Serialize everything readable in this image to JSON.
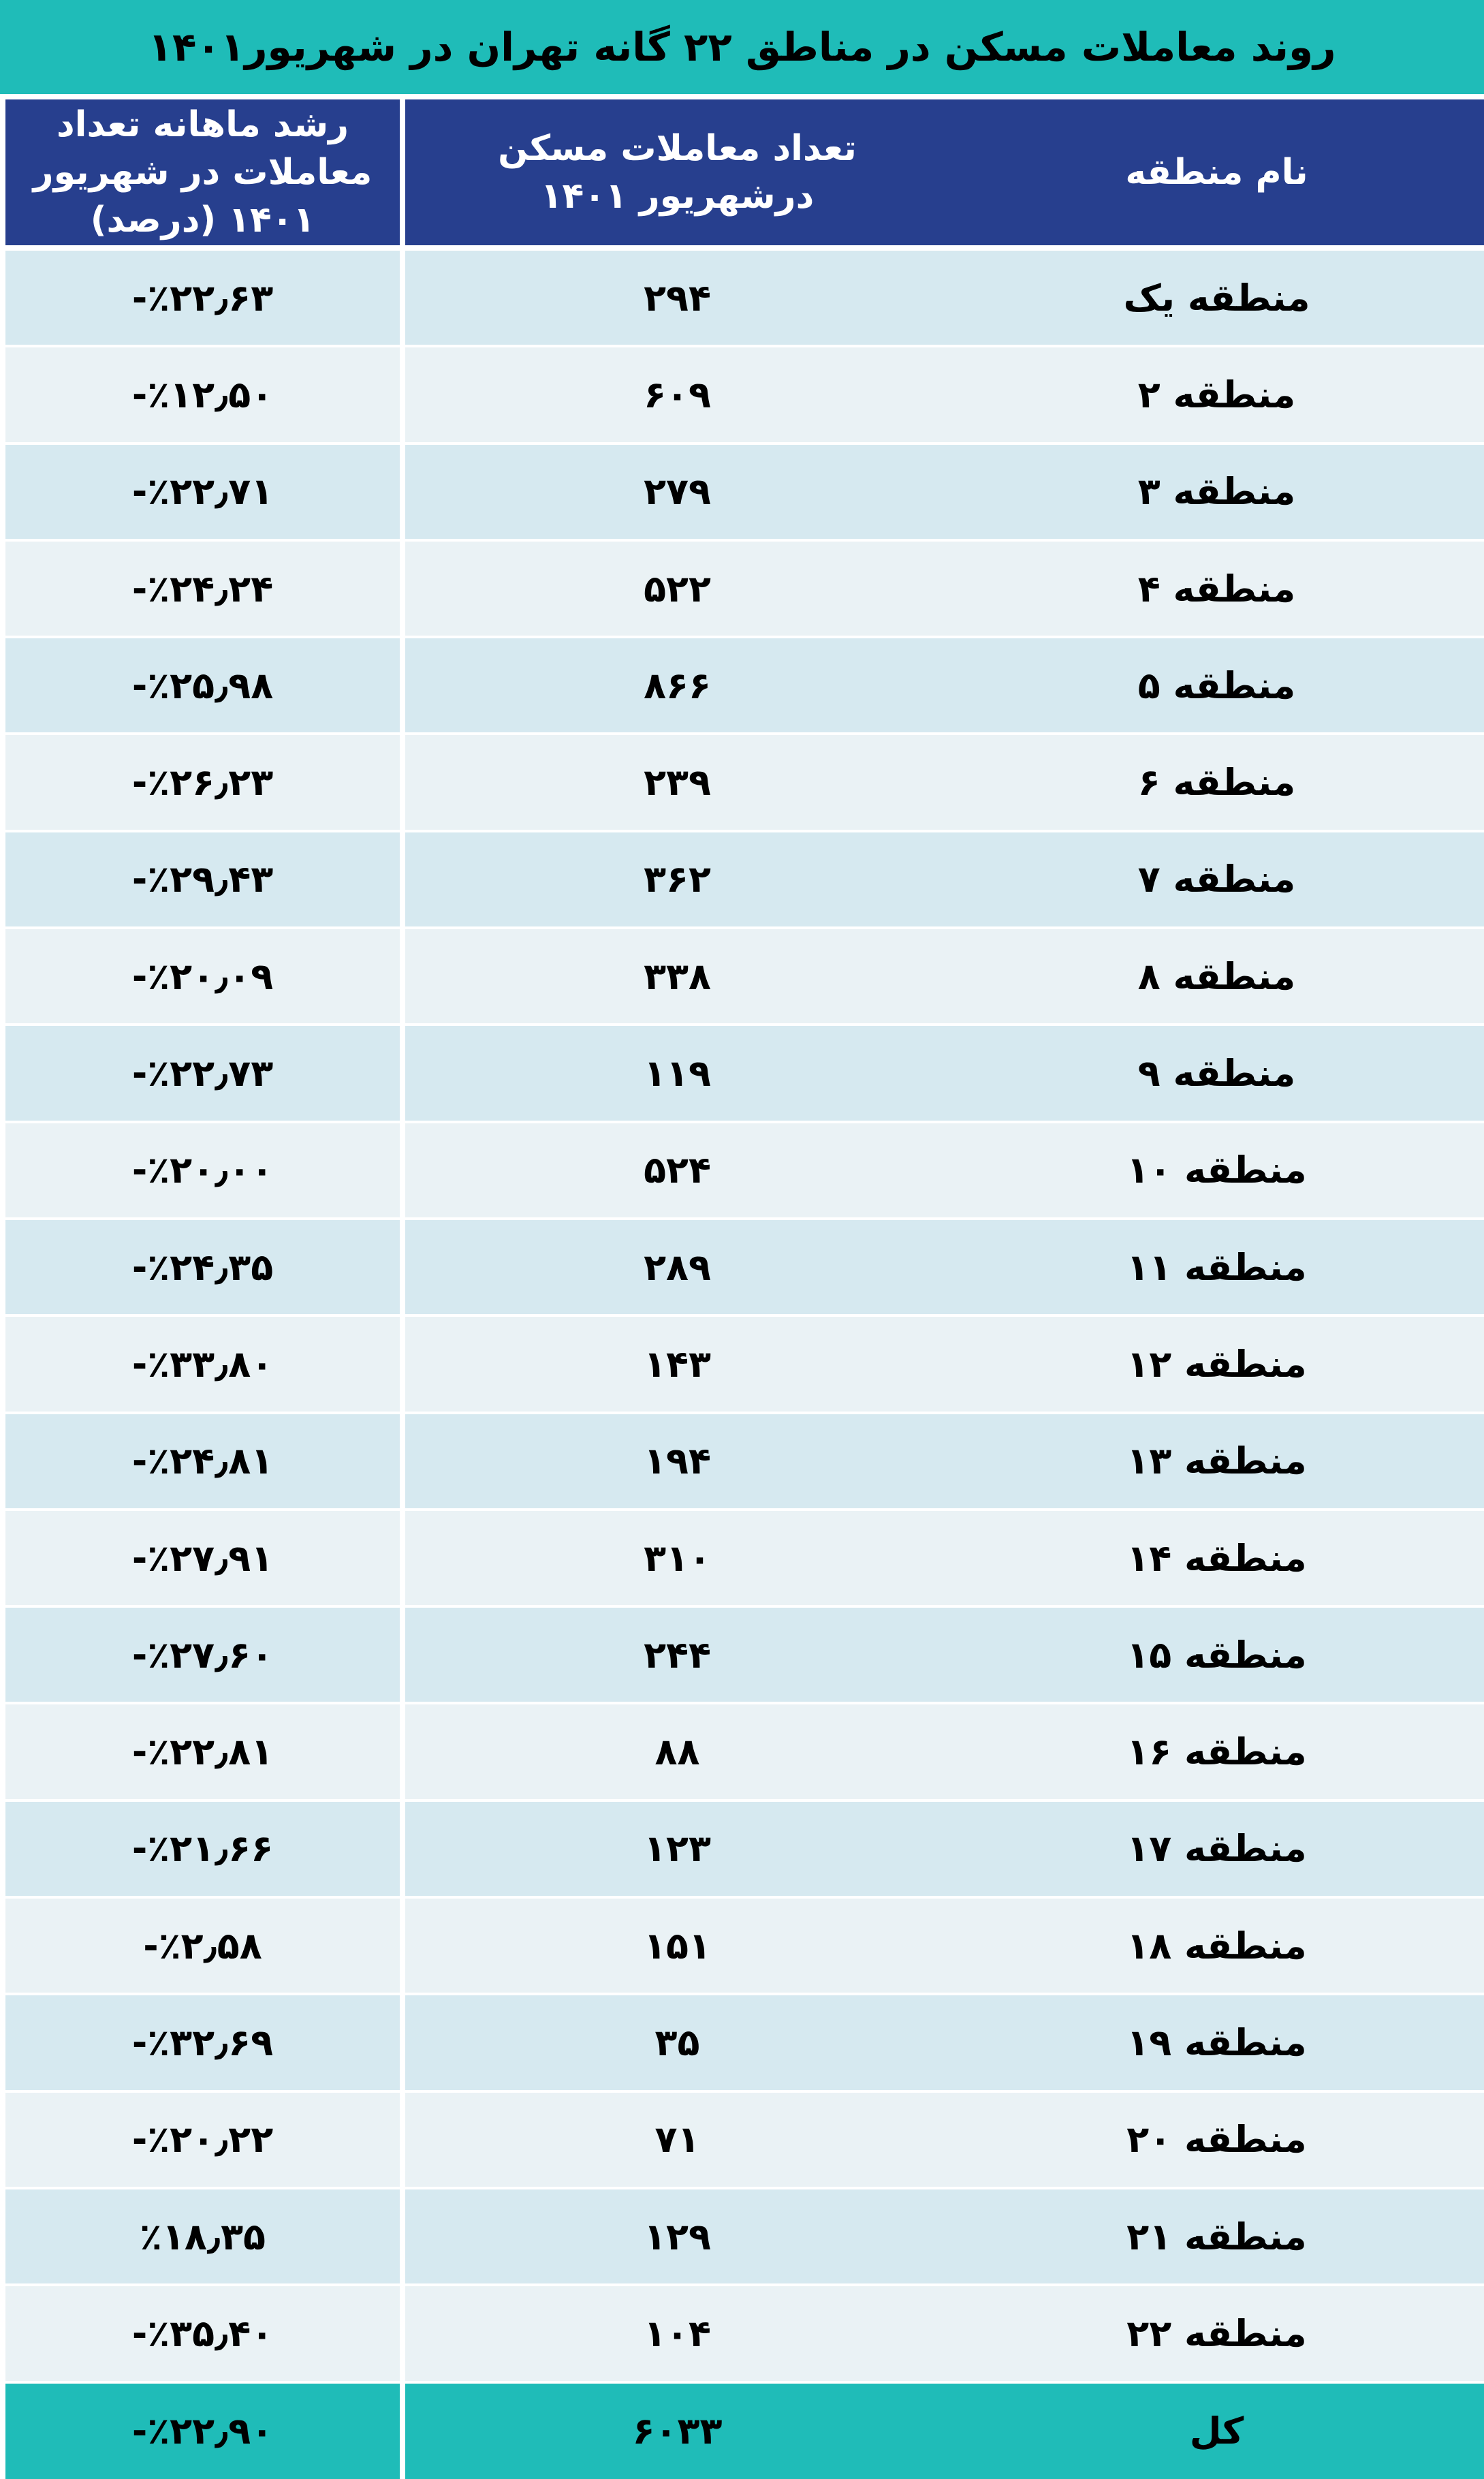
{
  "title": "روند معاملات مسکن در مناطق ۲۲ گانه تهران در شهریور۱۴۰۱",
  "colors": {
    "title_bg": "#1fbcb8",
    "header_bg": "#273f8e",
    "row_odd": "#d6e9f0",
    "row_even": "#eaf2f5",
    "total_bg": "#1fbcb8"
  },
  "headers": [
    "نام منطقه",
    "تعداد معاملات مسکن درشهریور ۱۴۰۱",
    "رشد ماهانه تعداد معاملات در شهریور ۱۴۰۱ (درصد)"
  ],
  "rows": [
    {
      "region": "منطقه یک",
      "count": "۲۹۴",
      "growth": "-٪۲۲٫۶۳"
    },
    {
      "region": "منطقه ۲",
      "count": "۶۰۹",
      "growth": "-٪۱۲٫۵۰"
    },
    {
      "region": "منطقه ۳",
      "count": "۲۷۹",
      "growth": "-٪۲۲٫۷۱"
    },
    {
      "region": "منطقه ۴",
      "count": "۵۲۲",
      "growth": "-٪۲۴٫۲۴"
    },
    {
      "region": "منطقه ۵",
      "count": "۸۶۶",
      "growth": "-٪۲۵٫۹۸"
    },
    {
      "region": "منطقه ۶",
      "count": "۲۳۹",
      "growth": "-٪۲۶٫۲۳"
    },
    {
      "region": "منطقه ۷",
      "count": "۳۶۲",
      "growth": "-٪۲۹٫۴۳"
    },
    {
      "region": "منطقه ۸",
      "count": "۳۳۸",
      "growth": "-٪۲۰٫۰۹"
    },
    {
      "region": "منطقه ۹",
      "count": "۱۱۹",
      "growth": "-٪۲۲٫۷۳"
    },
    {
      "region": "منطقه ۱۰",
      "count": "۵۲۴",
      "growth": "-٪۲۰٫۰۰"
    },
    {
      "region": "منطقه ۱۱",
      "count": "۲۸۹",
      "growth": "-٪۲۴٫۳۵"
    },
    {
      "region": "منطقه ۱۲",
      "count": "۱۴۳",
      "growth": "-٪۳۳٫۸۰"
    },
    {
      "region": "منطقه ۱۳",
      "count": "۱۹۴",
      "growth": "-٪۲۴٫۸۱"
    },
    {
      "region": "منطقه ۱۴",
      "count": "۳۱۰",
      "growth": "-٪۲۷٫۹۱"
    },
    {
      "region": "منطقه ۱۵",
      "count": "۲۴۴",
      "growth": "-٪۲۷٫۶۰"
    },
    {
      "region": "منطقه ۱۶",
      "count": "۸۸",
      "growth": "-٪۲۲٫۸۱"
    },
    {
      "region": "منطقه ۱۷",
      "count": "۱۲۳",
      "growth": "-٪۲۱٫۶۶"
    },
    {
      "region": "منطقه ۱۸",
      "count": "۱۵۱",
      "growth": "-٪۲٫۵۸"
    },
    {
      "region": "منطقه ۱۹",
      "count": "۳۵",
      "growth": "-٪۳۲٫۶۹"
    },
    {
      "region": "منطقه ۲۰",
      "count": "۷۱",
      "growth": "-٪۲۰٫۲۲"
    },
    {
      "region": "منطقه ۲۱",
      "count": "۱۲۹",
      "growth": "٪۱۸٫۳۵"
    },
    {
      "region": "منطقه ۲۲",
      "count": "۱۰۴",
      "growth": "-٪۳۵٫۴۰"
    }
  ],
  "total": {
    "region": "کل",
    "count": "۶۰۳۳",
    "growth": "-٪۲۲٫۹۰"
  }
}
